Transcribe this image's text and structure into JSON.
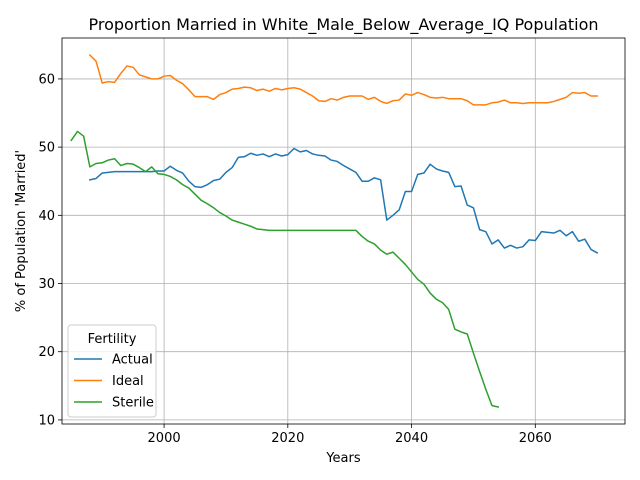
{
  "chart_data": {
    "type": "line",
    "title": "Proportion Married in White_Male_Below_Average_IQ Population",
    "xlabel": "Years",
    "ylabel": "% of Population 'Married'",
    "xlim": [
      1983.5,
      2074.5
    ],
    "ylim": [
      9.4,
      66.0
    ],
    "xticks": [
      2000,
      2020,
      2040,
      2060
    ],
    "yticks": [
      10,
      20,
      30,
      40,
      50,
      60
    ],
    "grid": true,
    "legend": {
      "title": "Fertility",
      "placement": "lower-left"
    },
    "series": [
      {
        "name": "Actual",
        "color": "#1f77b4",
        "x": [
          1988,
          1989,
          1990,
          1991,
          1992,
          1993,
          1994,
          1995,
          1996,
          1997,
          1998,
          1999,
          2000,
          2001,
          2002,
          2003,
          2004,
          2005,
          2006,
          2007,
          2008,
          2009,
          2010,
          2011,
          2012,
          2013,
          2014,
          2015,
          2016,
          2017,
          2018,
          2019,
          2020,
          2021,
          2022,
          2023,
          2024,
          2025,
          2026,
          2027,
          2028,
          2029,
          2030,
          2031,
          2032,
          2033,
          2034,
          2035,
          2036,
          2037,
          2038,
          2039,
          2040,
          2041,
          2042,
          2043,
          2044,
          2045,
          2046,
          2047,
          2048,
          2049,
          2050,
          2051,
          2052,
          2053,
          2054,
          2055,
          2056,
          2057,
          2058,
          2059,
          2060,
          2061,
          2062,
          2063,
          2064,
          2065,
          2066,
          2067,
          2068,
          2069,
          2070
        ],
        "y": [
          45.2,
          45.4,
          46.2,
          46.3,
          46.4,
          46.4,
          46.4,
          46.4,
          46.4,
          46.4,
          46.4,
          46.5,
          46.5,
          47.2,
          46.6,
          46.2,
          45.0,
          44.2,
          44.1,
          44.5,
          45.1,
          45.3,
          46.3,
          47.0,
          48.5,
          48.6,
          49.1,
          48.8,
          49.0,
          48.6,
          49.0,
          48.7,
          48.9,
          49.8,
          49.3,
          49.5,
          49.0,
          48.8,
          48.7,
          48.1,
          47.9,
          47.3,
          46.8,
          46.3,
          45.0,
          45.0,
          45.5,
          45.2,
          39.3,
          40.0,
          40.8,
          43.5,
          43.5,
          46.0,
          46.2,
          47.5,
          46.8,
          46.5,
          46.3,
          44.2,
          44.3,
          41.5,
          41.1,
          37.9,
          37.6,
          35.8,
          36.4,
          35.2,
          35.6,
          35.2,
          35.4,
          36.4,
          36.3,
          37.6,
          37.5,
          37.4,
          37.8,
          37.0,
          37.6,
          36.2,
          36.5,
          35.0,
          34.5
        ]
      },
      {
        "name": "Ideal",
        "color": "#ff7f0e",
        "x": [
          1988,
          1989,
          1990,
          1991,
          1992,
          1993,
          1994,
          1995,
          1996,
          1997,
          1998,
          1999,
          2000,
          2001,
          2002,
          2003,
          2004,
          2005,
          2006,
          2007,
          2008,
          2009,
          2010,
          2011,
          2012,
          2013,
          2014,
          2015,
          2016,
          2017,
          2018,
          2019,
          2020,
          2021,
          2022,
          2023,
          2024,
          2025,
          2026,
          2027,
          2028,
          2029,
          2030,
          2031,
          2032,
          2033,
          2034,
          2035,
          2036,
          2037,
          2038,
          2039,
          2040,
          2041,
          2042,
          2043,
          2044,
          2045,
          2046,
          2047,
          2048,
          2049,
          2050,
          2051,
          2052,
          2053,
          2054,
          2055,
          2056,
          2057,
          2058,
          2059,
          2060,
          2061,
          2062,
          2063,
          2064,
          2065,
          2066,
          2067,
          2068,
          2069,
          2070
        ],
        "y": [
          63.5,
          62.6,
          59.4,
          59.6,
          59.5,
          60.8,
          61.9,
          61.7,
          60.6,
          60.3,
          60.0,
          60.0,
          60.4,
          60.5,
          59.8,
          59.3,
          58.4,
          57.4,
          57.4,
          57.4,
          57.0,
          57.7,
          58.0,
          58.5,
          58.6,
          58.8,
          58.7,
          58.3,
          58.5,
          58.2,
          58.6,
          58.4,
          58.6,
          58.7,
          58.5,
          58.0,
          57.5,
          56.8,
          56.7,
          57.1,
          56.9,
          57.3,
          57.5,
          57.5,
          57.5,
          57.0,
          57.3,
          56.7,
          56.4,
          56.8,
          56.9,
          57.8,
          57.6,
          58.0,
          57.7,
          57.3,
          57.2,
          57.3,
          57.1,
          57.1,
          57.1,
          56.8,
          56.2,
          56.2,
          56.2,
          56.5,
          56.6,
          56.9,
          56.5,
          56.5,
          56.4,
          56.5,
          56.5,
          56.5,
          56.5,
          56.7,
          57.0,
          57.3,
          58.0,
          57.9,
          58.0,
          57.5,
          57.5
        ]
      },
      {
        "name": "Sterile",
        "color": "#2ca02c",
        "x": [
          1985,
          1986,
          1987,
          1988,
          1989,
          1990,
          1991,
          1992,
          1993,
          1994,
          1995,
          1996,
          1997,
          1998,
          1999,
          2000,
          2001,
          2002,
          2003,
          2004,
          2005,
          2006,
          2007,
          2008,
          2009,
          2010,
          2011,
          2012,
          2013,
          2014,
          2015,
          2016,
          2017,
          2018,
          2019,
          2020,
          2021,
          2022,
          2023,
          2024,
          2025,
          2026,
          2027,
          2028,
          2029,
          2030,
          2031,
          2032,
          2033,
          2034,
          2035,
          2036,
          2037,
          2038,
          2039,
          2040,
          2041,
          2042,
          2043,
          2044,
          2045,
          2046,
          2047,
          2048,
          2049,
          2050,
          2051,
          2052,
          2053,
          2054
        ],
        "y": [
          51.0,
          52.3,
          51.6,
          47.1,
          47.6,
          47.7,
          48.1,
          48.3,
          47.3,
          47.6,
          47.5,
          47.0,
          46.4,
          47.1,
          46.1,
          46.0,
          45.7,
          45.2,
          44.5,
          44.0,
          43.1,
          42.2,
          41.7,
          41.1,
          40.4,
          39.9,
          39.3,
          39.0,
          38.7,
          38.4,
          38.0,
          37.9,
          37.8,
          37.8,
          37.8,
          37.8,
          37.8,
          37.8,
          37.8,
          37.8,
          37.8,
          37.8,
          37.8,
          37.8,
          37.8,
          37.8,
          37.8,
          36.9,
          36.2,
          35.8,
          34.9,
          34.3,
          34.6,
          33.7,
          32.8,
          31.7,
          30.6,
          29.9,
          28.6,
          27.7,
          27.2,
          26.2,
          23.3,
          22.9,
          22.6,
          19.8,
          17.1,
          14.5,
          12.1,
          11.9
        ]
      }
    ]
  }
}
